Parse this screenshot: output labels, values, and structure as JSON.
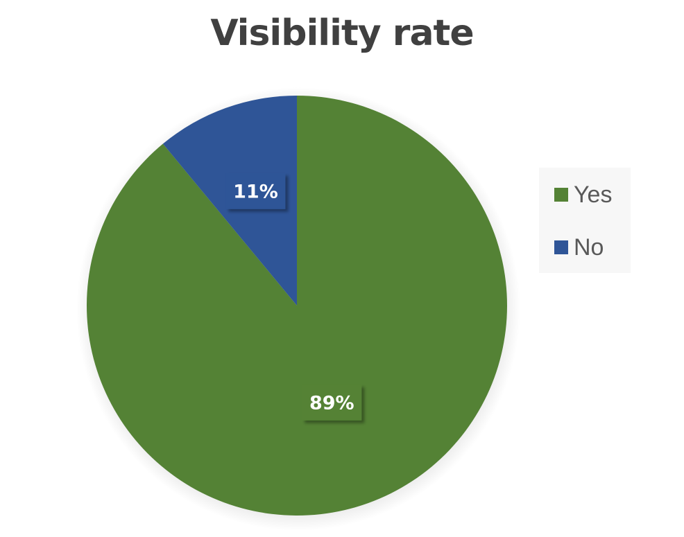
{
  "chart_data": {
    "type": "pie",
    "title": "Visibility rate",
    "categories": [
      "Yes",
      "No"
    ],
    "values": [
      89,
      11
    ],
    "data_labels": [
      "89%",
      "11%"
    ],
    "colors": [
      "#548235",
      "#2f5597"
    ],
    "legend_position": "right",
    "start_angle": "12 o'clock",
    "direction": "clockwise"
  }
}
